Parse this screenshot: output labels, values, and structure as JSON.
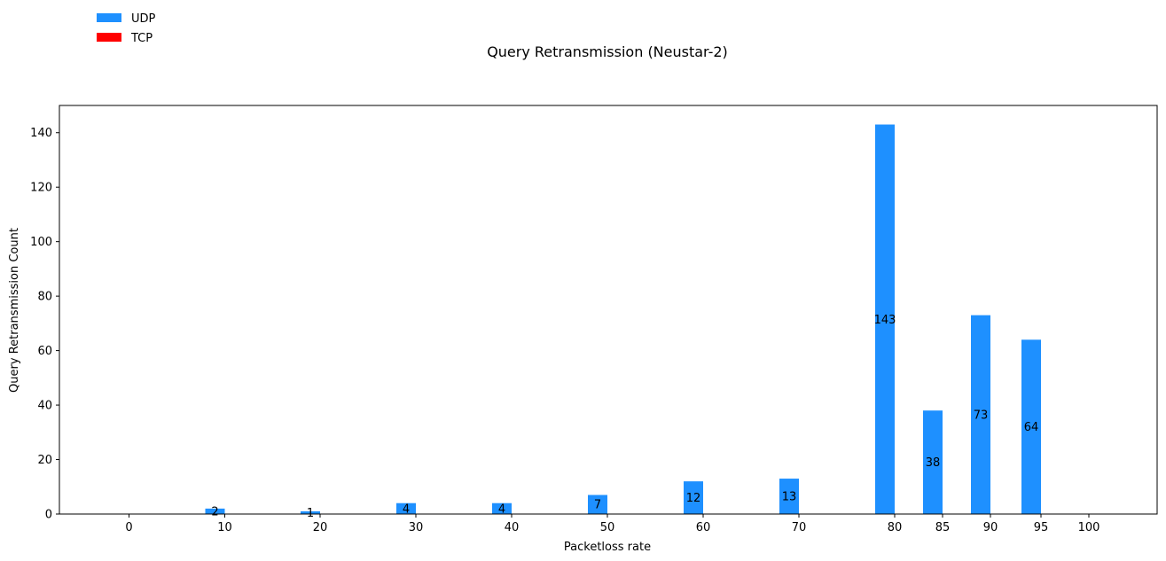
{
  "chart_data": {
    "type": "bar",
    "title": "Query Retransmission (Neustar-2)",
    "xlabel": "Packetloss rate",
    "ylabel": "Query Retransmission Count",
    "ylim": [
      0,
      150
    ],
    "yticks": [
      0,
      20,
      40,
      60,
      80,
      100,
      120,
      140
    ],
    "xticks": [
      "0",
      "10",
      "20",
      "30",
      "40",
      "50",
      "60",
      "70",
      "80",
      "85",
      "90",
      "95",
      "100"
    ],
    "legend": {
      "placement": "top-left",
      "entries": [
        {
          "label": "UDP",
          "color": "#1e90ff"
        },
        {
          "label": "TCP",
          "color": "#ff0000"
        }
      ]
    },
    "series": [
      {
        "name": "UDP",
        "color": "#1e90ff",
        "values": [
          0,
          2,
          1,
          4,
          4,
          7,
          12,
          13,
          143,
          38,
          73,
          64,
          0
        ],
        "labels": [
          "",
          "2",
          "1",
          "4",
          "4",
          "7",
          "12",
          "13",
          "143",
          "38",
          "73",
          "64",
          ""
        ]
      },
      {
        "name": "TCP",
        "color": "#ff0000",
        "values": [
          0,
          0,
          0,
          0,
          0,
          0,
          0,
          0,
          0,
          0,
          0,
          0,
          0
        ]
      }
    ]
  }
}
